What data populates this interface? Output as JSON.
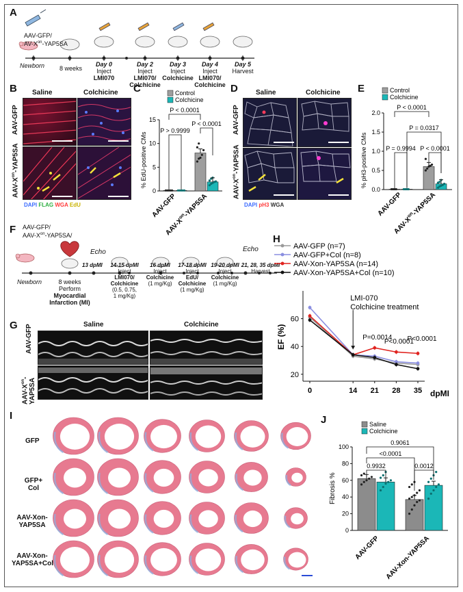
{
  "panels": {
    "A": {
      "label": "A",
      "vector": "AAV-GFP/ AV-Xon-YAP5SA",
      "vector_line1": "AAV-GFP/",
      "vector_line2a": "AV-X",
      "vector_line2sup": "on",
      "vector_line2b": "-YAP5SA",
      "newborn": "Newborn",
      "weeks": "8 weeks",
      "days": [
        {
          "day": "Day 0",
          "action1": "Inject",
          "action2": "LMI070"
        },
        {
          "day": "Day 2",
          "action1": "Inject",
          "action2": "LMI070/",
          "action3": "Colchicine"
        },
        {
          "day": "Day 3",
          "action1": "Inject",
          "action2": "Colchicine"
        },
        {
          "day": "Day 4",
          "action1": "Inject",
          "action2": "LMI070/",
          "action3": "Colchicine"
        },
        {
          "day": "Day 5",
          "action1": "Harvest"
        }
      ]
    },
    "B": {
      "label": "B",
      "col1": "Saline",
      "col2": "Colchicine",
      "row1": "AAV-GFP",
      "row2a": "AAV-X",
      "row2sup": "on",
      "row2b": "-YAP5SA",
      "legend": [
        {
          "text": "DAPI",
          "color": "#3b6bff"
        },
        {
          "text": "FLAG",
          "color": "#35d44a"
        },
        {
          "text": "WGA",
          "color": "#ff3b3b"
        },
        {
          "text": "EdU",
          "color": "#f5e23a"
        }
      ]
    },
    "C": {
      "label": "C",
      "legend": [
        "Control",
        "Colchicine"
      ],
      "ylabel": "% EdU-positive CMs",
      "yticks": [
        "0",
        "5",
        "10",
        "15"
      ],
      "xcats": [
        "AAV-GFP",
        "AAV-X",
        "on",
        "-YAP5SA"
      ],
      "pvals": [
        "P < 0.0001",
        "P > 0.9999",
        "P < 0.0001"
      ]
    },
    "D": {
      "label": "D",
      "col1": "Saline",
      "col2": "Colchicine",
      "row1": "AAV-GFP",
      "row2a": "AAV-X",
      "row2sup": "on",
      "row2b": "-YAP5SA",
      "legend": [
        {
          "text": "DAPI",
          "color": "#3b6bff"
        },
        {
          "text": "pH3",
          "color": "#ff3b3b"
        },
        {
          "text": "WGA",
          "color": "#ffffff"
        }
      ]
    },
    "E": {
      "label": "E",
      "legend": [
        "Control",
        "Colchicine"
      ],
      "ylabel": "% pH3-positive CMs",
      "yticks": [
        "0.0",
        "0.5",
        "1.0",
        "1.5",
        "2.0"
      ],
      "pvals": [
        "P < 0.0001",
        "P = 0.0317",
        "P = 0.9994",
        "P < 0.0001"
      ]
    },
    "F": {
      "label": "F",
      "vector_line1": "AAV-GFP/",
      "vector_line2a": "AAV-X",
      "vector_line2sup": "on",
      "vector_line2b": "-YAP5SA/",
      "newborn": "Newborn",
      "mi1": "8 weeks",
      "mi2": "Perform",
      "mi3": "Myocardial",
      "mi4": "Infarction (MI)",
      "echo1": "Echo",
      "echo2": "Echo",
      "steps": [
        {
          "day": "13 dpMI"
        },
        {
          "day": "14-15 dpMI",
          "l1": "Inject",
          "l2": "LMI070/",
          "l3": "Colchicine",
          "l4": "(0.5, 0.75,",
          "l5": "1 mg/Kg)"
        },
        {
          "day": "16 dpMI",
          "l1": "Inject",
          "l2": "Colchicine",
          "l3": "(1 mg/Kg)"
        },
        {
          "day": "17-18 dpMI",
          "l1": "Inject",
          "l2": "EdU/",
          "l3": "Colchicine",
          "l4": "(1 mg/Kg)"
        },
        {
          "day": "19-20 dpMI",
          "l1": "Inject",
          "l2": "Colchicine",
          "l3": "(1 mg/Kg)"
        },
        {
          "day": "21, 28, 35 dpMI",
          "l1": "Harvest"
        }
      ]
    },
    "G": {
      "label": "G",
      "col1": "Saline",
      "col2": "Colchicine",
      "row1": "AAV-GFP",
      "row2a": "AAV-X",
      "row2sup": "on",
      "row2b": "-YAP5SA"
    },
    "H": {
      "label": "H",
      "ylabel": "EF (%)",
      "xlabel": "dpMI",
      "annotation1": "LMI-070",
      "annotation2": "Colchicine treatment",
      "pvals": [
        "P=0.0014",
        "P<0.0001",
        "P<0.0001"
      ],
      "legend": [
        {
          "text": "AAV-GFP (n=7)",
          "color": "#9a9a9a"
        },
        {
          "text": "AAV-GFP+Col (n=8)",
          "color": "#8a8ee0"
        },
        {
          "text": "AAV-Xon-YAP5SA (n=14)",
          "color": "#e0231f"
        },
        {
          "text": "AAV-Xon-YAP5SA+Col (n=10)",
          "color": "#111111"
        }
      ]
    },
    "I": {
      "label": "I",
      "rows": [
        {
          "l1": "GFP"
        },
        {
          "l1": "GFP+",
          "l2": "Col"
        },
        {
          "l1": "AAV-Xon-",
          "l2": "YAP5SA"
        },
        {
          "l1": "AAV-Xon-",
          "l2": "YAP5SA+Col"
        }
      ]
    },
    "J": {
      "label": "J",
      "legend": [
        "Saline",
        "Colchicine"
      ],
      "ylabel": "Fibrosis %",
      "pvals": [
        "0.9061",
        "<0.0001",
        "0.9932",
        "0.0012"
      ],
      "xcat1": "AAV-GFP",
      "xcat2": "AAV-Xon-YAP5SA"
    }
  },
  "colors": {
    "control_gray": "#9e9e9e",
    "colchicine_teal": "#1bb7b7",
    "saline_gray": "#8c8c8c"
  },
  "chart_data": [
    {
      "panel": "C",
      "type": "bar",
      "categories": [
        "AAV-GFP",
        "AAV-Xon-YAP5SA"
      ],
      "series": [
        {
          "name": "Control",
          "values": [
            0.1,
            8.0
          ],
          "points": [
            [
              0.1,
              0.1,
              0.1,
              0.1,
              0.1
            ],
            [
              6.2,
              6.8,
              7.0,
              7.6,
              8.6,
              9.2,
              10.0
            ]
          ]
        },
        {
          "name": "Colchicine",
          "values": [
            0.1,
            1.9
          ],
          "points": [
            [
              0.1,
              0.1,
              0.1,
              0.1,
              0.1
            ],
            [
              1.2,
              1.5,
              1.7,
              1.9,
              2.0,
              2.2,
              2.6,
              2.8
            ]
          ]
        }
      ],
      "ylabel": "% EdU-positive CMs",
      "ylim": [
        0,
        15
      ]
    },
    {
      "panel": "E",
      "type": "bar",
      "categories": [
        "AAV-GFP",
        "AAV-Xon-YAP5SA"
      ],
      "series": [
        {
          "name": "Control",
          "values": [
            0.01,
            0.6
          ],
          "points": [
            [
              0.01,
              0.01,
              0.01,
              0.01
            ],
            [
              0.5,
              0.55,
              0.6,
              0.62,
              0.65,
              0.8
            ]
          ]
        },
        {
          "name": "Colchicine",
          "values": [
            0.01,
            0.15
          ],
          "points": [
            [
              0.01,
              0.01,
              0.01,
              0.01
            ],
            [
              0.05,
              0.08,
              0.1,
              0.12,
              0.15,
              0.18,
              0.2,
              0.25
            ]
          ]
        }
      ],
      "ylabel": "% pH3-positive CMs",
      "ylim": [
        0,
        2.0
      ]
    },
    {
      "panel": "H",
      "type": "line",
      "x": [
        0,
        14,
        21,
        28,
        35
      ],
      "series": [
        {
          "name": "AAV-GFP (n=7)",
          "values": [
            61,
            33,
            31,
            28,
            27
          ]
        },
        {
          "name": "AAV-GFP+Col (n=8)",
          "values": [
            68,
            34,
            33,
            29,
            28
          ]
        },
        {
          "name": "AAV-Xon-YAP5SA (n=14)",
          "values": [
            62,
            34,
            39,
            36,
            35
          ]
        },
        {
          "name": "AAV-Xon-YAP5SA+Col (n=10)",
          "values": [
            59,
            34,
            32,
            27,
            24
          ]
        }
      ],
      "ylabel": "EF (%)",
      "xlabel": "dpMI",
      "ylim": [
        15,
        80
      ],
      "yticks": [
        20,
        40,
        60
      ],
      "xticks": [
        0,
        14,
        21,
        28,
        35
      ]
    },
    {
      "panel": "J",
      "type": "bar",
      "categories": [
        "AAV-GFP",
        "AAV-Xon-YAP5SA"
      ],
      "series": [
        {
          "name": "Saline",
          "values": [
            62,
            37
          ],
          "points": [
            [
              55,
              58,
              60,
              62,
              64,
              66,
              68
            ],
            [
              20,
              25,
              30,
              34,
              36,
              38,
              40,
              42,
              45,
              48,
              52,
              55,
              58
            ]
          ]
        },
        {
          "name": "Colchicine",
          "values": [
            58,
            54
          ],
          "points": [
            [
              48,
              52,
              56,
              58,
              60,
              63,
              66,
              70
            ],
            [
              38,
              44,
              48,
              52,
              55,
              58,
              62,
              66,
              70
            ]
          ]
        }
      ],
      "ylabel": "Fibrosis %",
      "ylim": [
        0,
        100
      ],
      "yticks": [
        0,
        20,
        40,
        60,
        80,
        100
      ]
    }
  ]
}
